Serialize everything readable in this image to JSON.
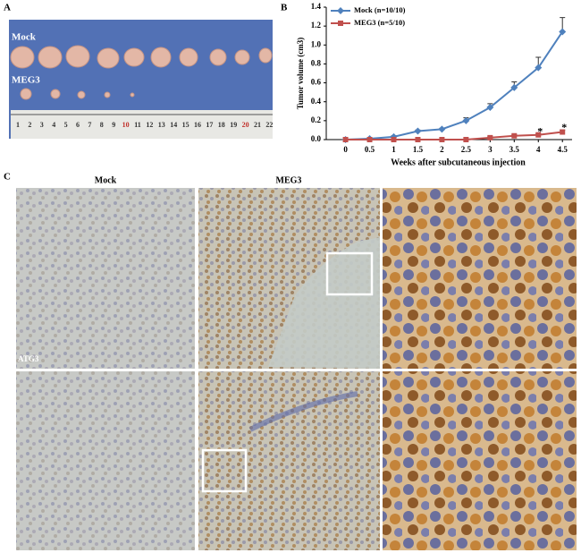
{
  "panel_labels": [
    "A",
    "B",
    "C"
  ],
  "panel_a": {
    "labels": [
      "Mock",
      "MEG3"
    ],
    "ruler": [
      "1",
      "2",
      "3",
      "4",
      "5",
      "6",
      "7",
      "8",
      "9",
      "10",
      "11",
      "12",
      "13",
      "14",
      "15",
      "16",
      "17",
      "18",
      "19",
      "20",
      "21",
      "22"
    ]
  },
  "panel_c": {
    "column_headers": [
      "Mock",
      "MEG3"
    ],
    "row_label": "ATG3"
  },
  "chart_data": {
    "type": "line",
    "xlabel": "Weeks after subcutaneous injection",
    "ylabel": "Tumor volume (cm3)",
    "x": [
      0,
      0.5,
      1,
      1.5,
      2,
      2.5,
      3,
      3.5,
      4,
      4.5
    ],
    "series": [
      {
        "name": "Mock (n=10/10)",
        "color": "#4f81bd",
        "marker": "diamond",
        "values": [
          0.0,
          0.01,
          0.03,
          0.09,
          0.11,
          0.2,
          0.34,
          0.55,
          0.76,
          1.14
        ],
        "errors": [
          0,
          0.005,
          0.01,
          0.01,
          0.01,
          0.03,
          0.04,
          0.06,
          0.11,
          0.15
        ]
      },
      {
        "name": "MEG3 (n=5/10)",
        "color": "#c0504d",
        "marker": "square",
        "values": [
          0,
          0,
          0,
          0,
          0,
          0,
          0.02,
          0.04,
          0.05,
          0.08
        ],
        "errors": [
          0,
          0,
          0,
          0,
          0,
          0.005,
          0.01,
          0.01,
          0.01,
          0.02
        ]
      }
    ],
    "annotations": [
      {
        "x": 4,
        "label": "*"
      },
      {
        "x": 4.5,
        "label": "*"
      }
    ],
    "xlim": [
      -0.4,
      4.7
    ],
    "xticks": [
      0,
      0.5,
      1,
      1.5,
      2,
      2.5,
      3,
      3.5,
      4,
      4.5
    ],
    "ylim": [
      0,
      1.4
    ],
    "yticks": [
      {
        "value": 0,
        "label": "0.0"
      },
      0.2,
      0.4,
      0.6,
      0.8,
      {
        "value": 1,
        "label": "1.0"
      },
      1.2,
      1.4
    ],
    "legend": "upper left",
    "grid": false
  }
}
